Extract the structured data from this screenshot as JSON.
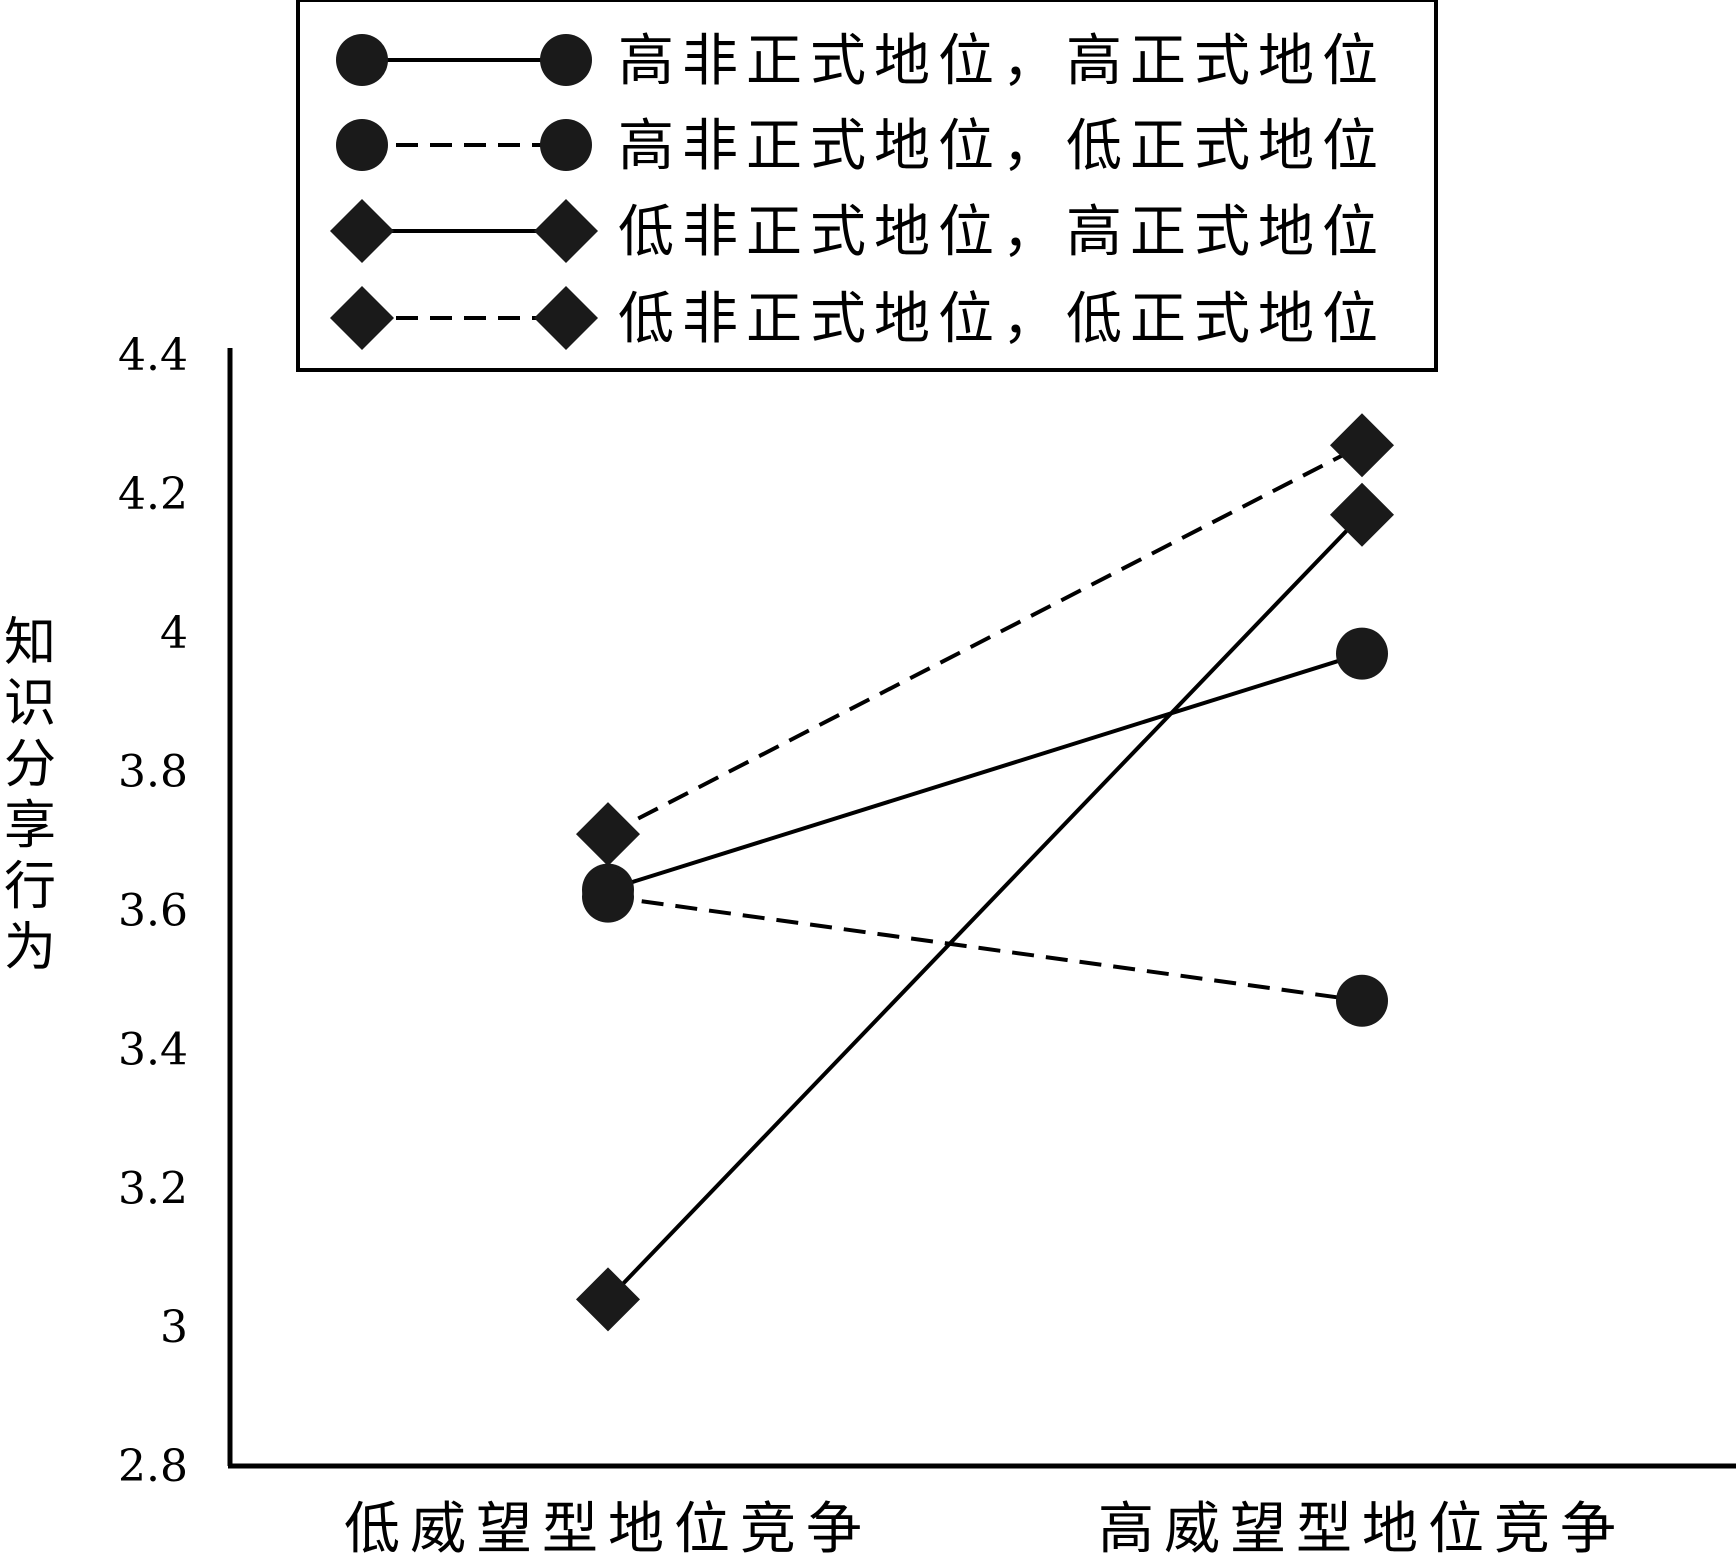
{
  "chart_data": {
    "type": "line",
    "title": "",
    "xlabel": "",
    "ylabel": "知识分享行为",
    "categories": [
      "低威望型地位竞争",
      "高威望型地位竞争"
    ],
    "ylim": [
      2.8,
      4.4
    ],
    "yticks": [
      2.8,
      3.0,
      3.2,
      3.4,
      3.6,
      3.8,
      4.0,
      4.2,
      4.4
    ],
    "ytick_labels": [
      "2.8",
      "3",
      "3.2",
      "3.4",
      "3.6",
      "3.8",
      "4",
      "4.2",
      "4.4"
    ],
    "grid": false,
    "legend_position": "top",
    "series": [
      {
        "name": "高非正式地位，高正式地位",
        "marker": "circle",
        "line": "solid",
        "values": [
          3.63,
          3.97
        ]
      },
      {
        "name": "高非正式地位，低正式地位",
        "marker": "circle",
        "line": "dashed",
        "values": [
          3.62,
          3.47
        ]
      },
      {
        "name": "低非正式地位，高正式地位",
        "marker": "diamond",
        "line": "solid",
        "values": [
          3.04,
          4.17
        ]
      },
      {
        "name": "低非正式地位，低正式地位",
        "marker": "diamond",
        "line": "dashed",
        "values": [
          3.71,
          4.27
        ]
      }
    ],
    "colors": {
      "line": "#000000",
      "marker": "#1a1a1a",
      "background": "#ffffff"
    }
  }
}
